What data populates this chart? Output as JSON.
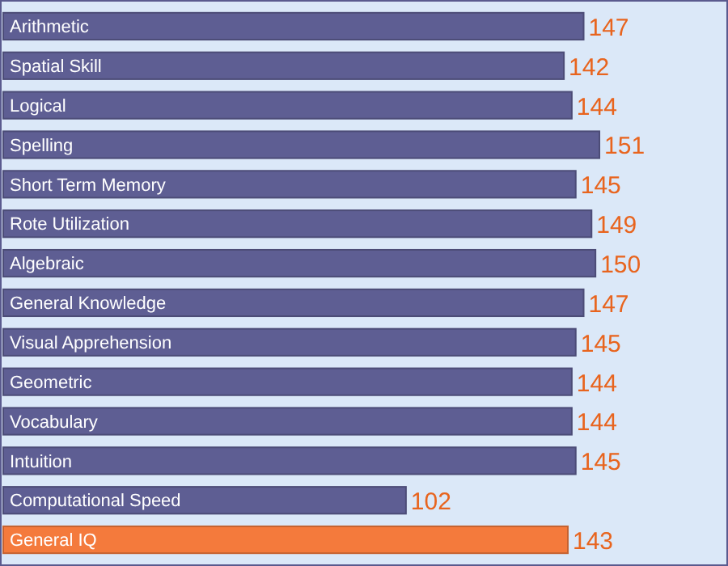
{
  "chart_data": {
    "type": "bar",
    "orientation": "horizontal",
    "categories": [
      "Arithmetic",
      "Spatial Skill",
      "Logical",
      "Spelling",
      "Short Term Memory",
      "Rote Utilization",
      "Algebraic",
      "General Knowledge",
      "Visual Apprehension",
      "Geometric",
      "Vocabulary",
      "Intuition",
      "Computational Speed",
      "General IQ"
    ],
    "values": [
      147,
      142,
      144,
      151,
      145,
      149,
      150,
      147,
      145,
      144,
      144,
      145,
      102,
      143
    ],
    "colors": [
      "#5e5e93",
      "#5e5e93",
      "#5e5e93",
      "#5e5e93",
      "#5e5e93",
      "#5e5e93",
      "#5e5e93",
      "#5e5e93",
      "#5e5e93",
      "#5e5e93",
      "#5e5e93",
      "#5e5e93",
      "#5e5e93",
      "#f47a3c"
    ],
    "data_labels": true,
    "grid": false,
    "tick_labels": "y"
  }
}
